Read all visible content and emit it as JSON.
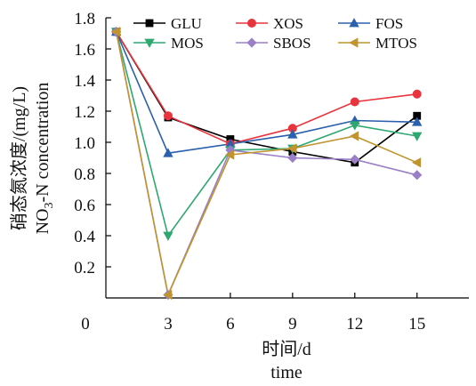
{
  "chart_data": {
    "type": "line",
    "x": [
      0.5,
      3,
      6,
      9,
      12,
      15
    ],
    "xticks": [
      0,
      3,
      6,
      9,
      12,
      15
    ],
    "yticks": [
      0.2,
      0.4,
      0.6,
      0.8,
      1.0,
      1.2,
      1.4,
      1.6,
      1.8
    ],
    "origin_label": "0",
    "xlim": [
      0,
      17.5
    ],
    "ylim": [
      0,
      1.8
    ],
    "xlabel_line1": "时间/d",
    "xlabel_line2": "time",
    "ylabel_line1": "硝态氮浓度/(mg/L)",
    "ylabel_line2_prefix": "NO",
    "ylabel_line2_sub": "3",
    "ylabel_line2_suffix": "-N concentration",
    "legend_position": "top",
    "grid": false,
    "series": [
      {
        "name": "GLU",
        "color": "#000000",
        "marker": "square",
        "values": [
          1.71,
          1.16,
          1.02,
          0.94,
          0.87,
          1.17
        ]
      },
      {
        "name": "XOS",
        "color": "#e8343c",
        "marker": "circle",
        "values": [
          1.71,
          1.17,
          0.99,
          1.09,
          1.26,
          1.31
        ]
      },
      {
        "name": "FOS",
        "color": "#2b60ad",
        "marker": "triangle-up",
        "values": [
          1.71,
          0.93,
          0.99,
          1.05,
          1.14,
          1.13
        ]
      },
      {
        "name": "MOS",
        "color": "#2ea870",
        "marker": "triangle-down",
        "values": [
          1.71,
          0.4,
          0.95,
          0.96,
          1.11,
          1.04
        ]
      },
      {
        "name": "SBOS",
        "color": "#9b7fc7",
        "marker": "diamond",
        "values": [
          1.71,
          0.02,
          0.95,
          0.9,
          0.89,
          0.79
        ]
      },
      {
        "name": "MTOS",
        "color": "#c0942f",
        "marker": "triangle-left",
        "values": [
          1.71,
          0.02,
          0.92,
          0.96,
          1.04,
          0.87
        ]
      }
    ]
  }
}
